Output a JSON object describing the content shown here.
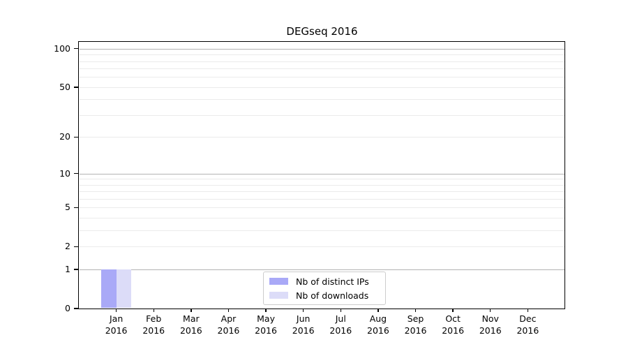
{
  "chart_data": {
    "type": "bar",
    "title": "DEGseq 2016",
    "categories": [
      "Jan 2016",
      "Feb 2016",
      "Mar 2016",
      "Apr 2016",
      "May 2016",
      "Jun 2016",
      "Jul 2016",
      "Aug 2016",
      "Sep 2016",
      "Oct 2016",
      "Nov 2016",
      "Dec 2016"
    ],
    "series": [
      {
        "name": "Nb of distinct IPs",
        "color": "#a9a9f7",
        "values": [
          1,
          0,
          0,
          0,
          0,
          0,
          0,
          0,
          0,
          0,
          0,
          0
        ]
      },
      {
        "name": "Nb of downloads",
        "color": "#dcdcf8",
        "values": [
          1,
          0,
          0,
          0,
          0,
          0,
          0,
          0,
          0,
          0,
          0,
          0
        ]
      }
    ],
    "xlabel": "",
    "ylabel": "",
    "yscale": "log1p",
    "ylim": [
      0,
      113
    ],
    "yticks": [
      0,
      1,
      2,
      5,
      10,
      20,
      50,
      100
    ],
    "grid": {
      "major_values": [
        1,
        10,
        100
      ],
      "minor_values": [
        2,
        3,
        4,
        5,
        6,
        7,
        8,
        9,
        20,
        30,
        40,
        50,
        60,
        70,
        80,
        90
      ],
      "major_color": "#b3b3b3",
      "minor_color": "#ebebeb"
    },
    "legend_position": "lower center",
    "frame_color": "#000000",
    "background_color": "#ffffff"
  }
}
